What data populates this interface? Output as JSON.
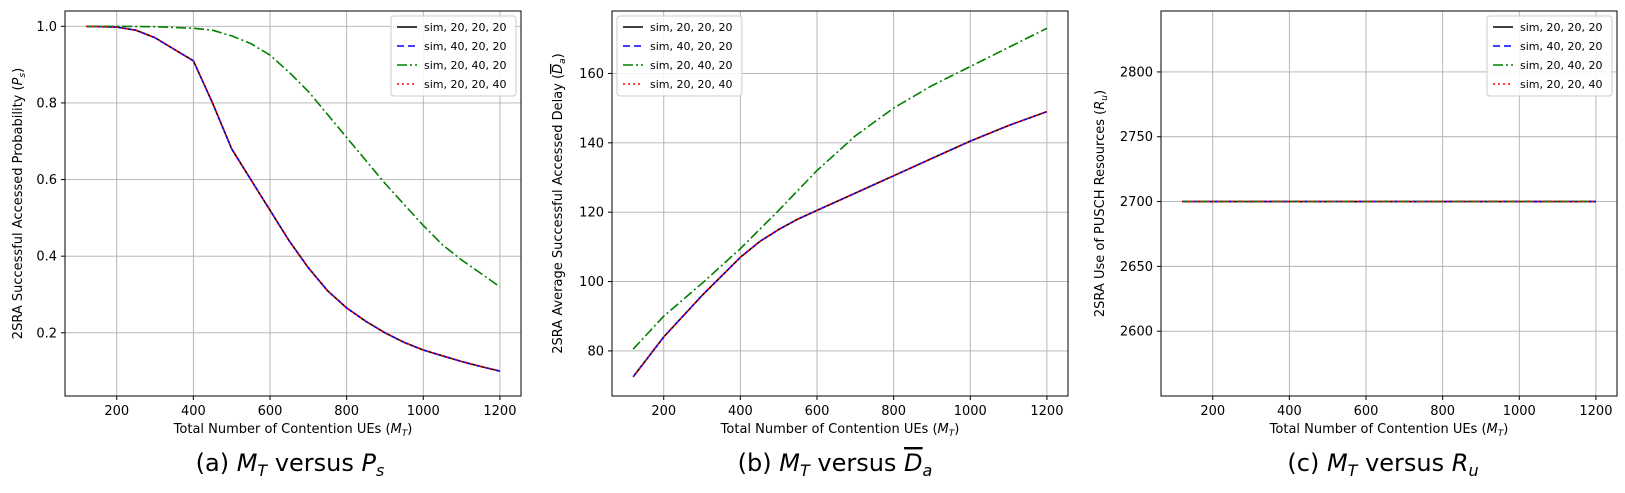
{
  "chart_data": [
    {
      "type": "line",
      "caption": {
        "pre": "(a) ",
        "x": "M",
        "xsub": "T",
        "mid": " versus ",
        "y": "P",
        "ysub": "s",
        "ybar": false
      },
      "xlabel": {
        "text": "Total Number of Contention UEs (",
        "sym": "M",
        "sub": "T",
        "end": ")"
      },
      "ylabel": {
        "text": "2SRA Successful Accessed Probability (",
        "sym": "P",
        "sub": "s",
        "end": ")",
        "bar": false
      },
      "xlim": [
        65,
        1255
      ],
      "ylim": [
        0.035,
        1.04
      ],
      "xticks": [
        200,
        400,
        600,
        800,
        1000,
        1200
      ],
      "yticks": [
        0.2,
        0.4,
        0.6,
        0.8,
        1.0
      ],
      "ytick_labels": [
        "0.2",
        "0.4",
        "0.6",
        "0.8",
        "1.0"
      ],
      "legend_position": "upper right",
      "grid": true,
      "series": [
        {
          "name": "sim, 20, 20, 20",
          "color": "#000000",
          "dash": "",
          "x": [
            120,
            200,
            250,
            300,
            350,
            400,
            450,
            500,
            550,
            600,
            650,
            700,
            750,
            800,
            850,
            900,
            950,
            1000,
            1050,
            1100,
            1150,
            1200
          ],
          "y": [
            1.0,
            0.998,
            0.99,
            0.97,
            0.94,
            0.91,
            0.8,
            0.68,
            0.6,
            0.52,
            0.44,
            0.37,
            0.31,
            0.265,
            0.23,
            0.2,
            0.175,
            0.155,
            0.14,
            0.125,
            0.112,
            0.1
          ]
        },
        {
          "name": "sim, 40, 20, 20",
          "color": "#0000ff",
          "dash": "7,4",
          "x": [
            120,
            200,
            250,
            300,
            350,
            400,
            450,
            500,
            550,
            600,
            650,
            700,
            750,
            800,
            850,
            900,
            950,
            1000,
            1050,
            1100,
            1150,
            1200
          ],
          "y": [
            1.0,
            0.998,
            0.99,
            0.97,
            0.94,
            0.91,
            0.8,
            0.68,
            0.6,
            0.52,
            0.44,
            0.37,
            0.31,
            0.265,
            0.23,
            0.2,
            0.175,
            0.155,
            0.14,
            0.125,
            0.112,
            0.1
          ]
        },
        {
          "name": "sim, 20, 40, 20",
          "color": "#008000",
          "dash": "10,3,2,3",
          "x": [
            120,
            200,
            300,
            400,
            450,
            500,
            550,
            600,
            650,
            700,
            750,
            800,
            850,
            900,
            950,
            1000,
            1050,
            1100,
            1150,
            1200
          ],
          "y": [
            1.0,
            1.0,
            0.999,
            0.995,
            0.99,
            0.975,
            0.955,
            0.925,
            0.88,
            0.83,
            0.77,
            0.71,
            0.65,
            0.59,
            0.535,
            0.48,
            0.43,
            0.39,
            0.355,
            0.32
          ]
        },
        {
          "name": "sim, 20, 20, 40",
          "color": "#ff0000",
          "dash": "2,3",
          "x": [
            120,
            200,
            250,
            300,
            350,
            400,
            450,
            500,
            550,
            600,
            650,
            700,
            750,
            800,
            850,
            900,
            950,
            1000,
            1050,
            1100,
            1150,
            1200
          ],
          "y": [
            1.0,
            0.998,
            0.99,
            0.97,
            0.94,
            0.91,
            0.8,
            0.68,
            0.6,
            0.52,
            0.44,
            0.37,
            0.31,
            0.265,
            0.23,
            0.2,
            0.175,
            0.155,
            0.14,
            0.125,
            0.112,
            0.1
          ]
        }
      ]
    },
    {
      "type": "line",
      "caption": {
        "pre": "(b) ",
        "x": "M",
        "xsub": "T",
        "mid": " versus ",
        "y": "D",
        "ysub": "a",
        "ybar": true
      },
      "xlabel": {
        "text": "Total Number of Contention UEs (",
        "sym": "M",
        "sub": "T",
        "end": ")"
      },
      "ylabel": {
        "text": "2SRA Average Successful Accessed Delay (",
        "sym": "D",
        "sub": "a",
        "end": ")",
        "bar": true
      },
      "xlim": [
        65,
        1255
      ],
      "ylim": [
        67,
        178
      ],
      "xticks": [
        200,
        400,
        600,
        800,
        1000,
        1200
      ],
      "yticks": [
        80,
        100,
        120,
        140,
        160
      ],
      "ytick_labels": [
        "80",
        "100",
        "120",
        "140",
        "160"
      ],
      "legend_position": "upper left",
      "grid": true,
      "series": [
        {
          "name": "sim, 20, 20, 20",
          "color": "#000000",
          "dash": "",
          "x": [
            120,
            200,
            300,
            400,
            450,
            500,
            550,
            600,
            700,
            800,
            900,
            1000,
            1100,
            1200
          ],
          "y": [
            72.5,
            84,
            96,
            107,
            111.5,
            115,
            118,
            120.5,
            125.5,
            130.5,
            135.5,
            140.5,
            145,
            149
          ]
        },
        {
          "name": "sim, 40, 20, 20",
          "color": "#0000ff",
          "dash": "7,4",
          "x": [
            120,
            200,
            300,
            400,
            450,
            500,
            550,
            600,
            700,
            800,
            900,
            1000,
            1100,
            1200
          ],
          "y": [
            72.5,
            84,
            96,
            107,
            111.5,
            115,
            118,
            120.5,
            125.5,
            130.5,
            135.5,
            140.5,
            145,
            149
          ]
        },
        {
          "name": "sim, 20, 40, 20",
          "color": "#008000",
          "dash": "10,3,2,3",
          "x": [
            120,
            200,
            300,
            400,
            500,
            600,
            700,
            800,
            900,
            1000,
            1100,
            1200
          ],
          "y": [
            80.5,
            90,
            99.5,
            109.5,
            120.5,
            132,
            142,
            150,
            156.5,
            162,
            167.5,
            173
          ]
        },
        {
          "name": "sim, 20, 20, 40",
          "color": "#ff0000",
          "dash": "2,3",
          "x": [
            120,
            200,
            300,
            400,
            450,
            500,
            550,
            600,
            700,
            800,
            900,
            1000,
            1100,
            1200
          ],
          "y": [
            72.5,
            84,
            96,
            107,
            111.5,
            115,
            118,
            120.5,
            125.5,
            130.5,
            135.5,
            140.5,
            145,
            149
          ]
        }
      ]
    },
    {
      "type": "line",
      "caption": {
        "pre": "(c) ",
        "x": "M",
        "xsub": "T",
        "mid": " versus ",
        "y": "R",
        "ysub": "u",
        "ybar": false
      },
      "xlabel": {
        "text": "Total Number of Contention UEs (",
        "sym": "M",
        "sub": "T",
        "end": ")"
      },
      "ylabel": {
        "text": "2SRA Use of PUSCH Resources (",
        "sym": "R",
        "sub": "u",
        "end": ")",
        "bar": false
      },
      "xlim": [
        65,
        1255
      ],
      "ylim": [
        2550,
        2847
      ],
      "xticks": [
        200,
        400,
        600,
        800,
        1000,
        1200
      ],
      "yticks": [
        2600,
        2650,
        2700,
        2750,
        2800
      ],
      "ytick_labels": [
        "2600",
        "2650",
        "2700",
        "2750",
        "2800"
      ],
      "legend_position": "upper right",
      "grid": true,
      "series": [
        {
          "name": "sim, 20, 20, 20",
          "color": "#000000",
          "dash": "",
          "x": [
            120,
            1200
          ],
          "y": [
            2700,
            2700
          ]
        },
        {
          "name": "sim, 40, 20, 20",
          "color": "#0000ff",
          "dash": "7,4",
          "x": [
            120,
            1200
          ],
          "y": [
            2700,
            2700
          ]
        },
        {
          "name": "sim, 20, 40, 20",
          "color": "#008000",
          "dash": "10,3,2,3",
          "x": [
            120,
            1200
          ],
          "y": [
            2700,
            2700
          ]
        },
        {
          "name": "sim, 20, 20, 40",
          "color": "#ff0000",
          "dash": "2,3",
          "x": [
            120,
            1200
          ],
          "y": [
            2700,
            2700
          ]
        }
      ]
    }
  ]
}
